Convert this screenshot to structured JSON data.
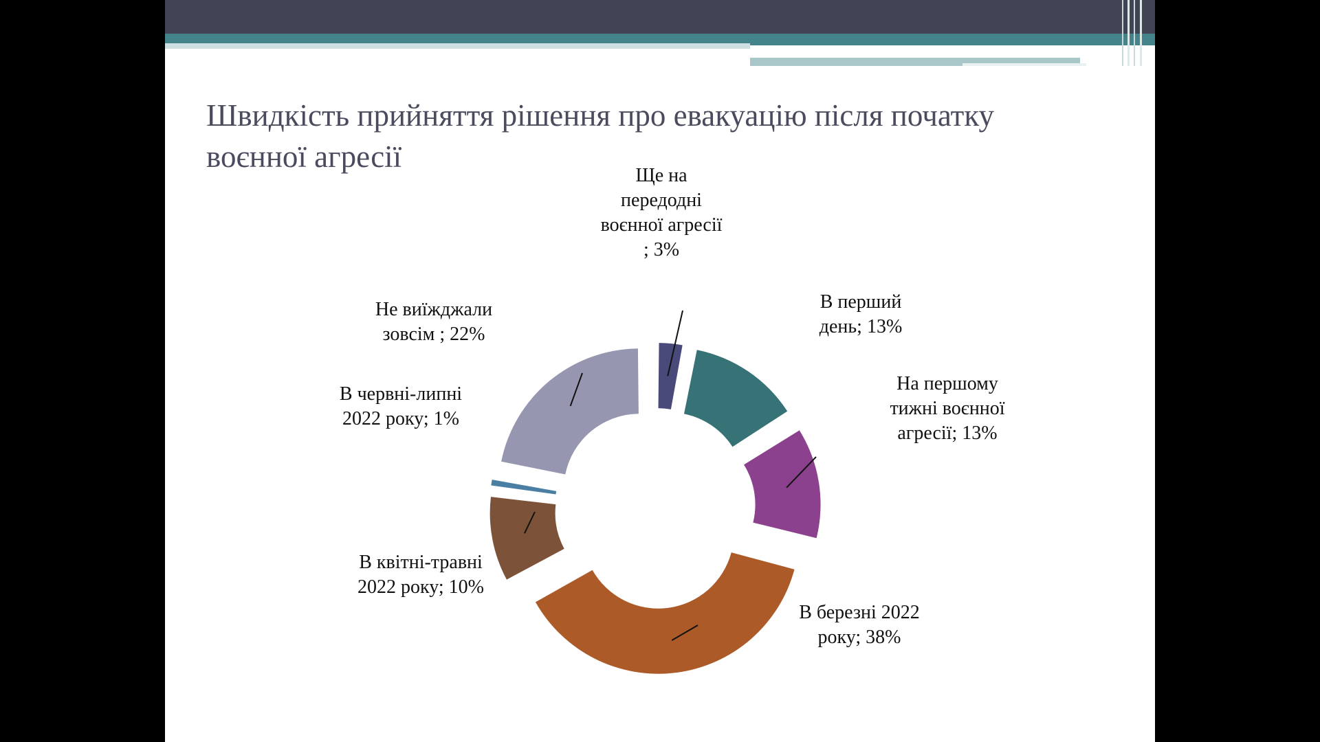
{
  "slide": {
    "title": "Швидкість прийняття рішення про евакуацію після початку воєнної агресії"
  },
  "chart_data": {
    "type": "pie",
    "variant": "doughnut-exploded",
    "title": "Швидкість прийняття рішення про евакуацію після початку воєнної агресії",
    "slices": [
      {
        "label_lines": [
          "Ще на",
          "передодні",
          "воєнної агресії",
          "; 3%"
        ],
        "value": 3,
        "color": "#4a4a7a"
      },
      {
        "label_lines": [
          "В перший",
          "день; 13%"
        ],
        "value": 13,
        "color": "#377276"
      },
      {
        "label_lines": [
          "На першому",
          "тижні воєнної",
          "агресії; 13%"
        ],
        "value": 13,
        "color": "#8b418e"
      },
      {
        "label_lines": [
          "В березні 2022",
          "року; 38%"
        ],
        "value": 38,
        "color": "#ab5a28"
      },
      {
        "label_lines": [
          "В квітні-травні",
          "2022 року; 10%"
        ],
        "value": 10,
        "color": "#7c5338"
      },
      {
        "label_lines": [
          "В червні-липні",
          "2022 року; 1%"
        ],
        "value": 1,
        "color": "#4a7fa3"
      },
      {
        "label_lines": [
          "Не виїжджали",
          "зовсім ; 22%"
        ],
        "value": 22,
        "color": "#9696b0"
      }
    ]
  }
}
